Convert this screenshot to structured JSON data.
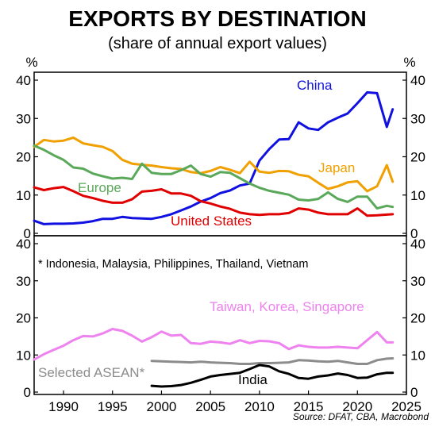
{
  "title": "EXPORTS BY DESTINATION",
  "subtitle": "(share of annual export values)",
  "source": "Source: DFAT, CBA, Macrobond",
  "unit_label": "%",
  "chart_data": [
    {
      "type": "line",
      "ylim": [
        0,
        40
      ],
      "yticks": [
        "0",
        "10",
        "20",
        "30",
        "40"
      ],
      "xlim": [
        1987,
        2025
      ],
      "series": [
        {
          "name": "China",
          "color": "#1010e0",
          "x": [
            1987,
            1988,
            1989,
            1990,
            1991,
            1992,
            1993,
            1994,
            1995,
            1996,
            1997,
            1998,
            1999,
            2000,
            2001,
            2002,
            2003,
            2004,
            2005,
            2006,
            2007,
            2008,
            2009,
            2010,
            2011,
            2012,
            2013,
            2014,
            2015,
            2016,
            2017,
            2018,
            2019,
            2020,
            2021,
            2022,
            2023,
            2023.6
          ],
          "y": [
            3.3,
            2.4,
            2.5,
            2.5,
            2.6,
            2.8,
            3.2,
            3.8,
            3.8,
            4.3,
            4.0,
            3.9,
            3.8,
            4.3,
            5.0,
            6.0,
            7.0,
            8.3,
            9.2,
            10.5,
            11.2,
            12.5,
            13.0,
            19.0,
            22.0,
            24.5,
            24.6,
            29.0,
            27.4,
            27.0,
            29.0,
            30.2,
            31.3,
            34.0,
            36.8,
            36.6,
            27.8,
            32.4
          ]
        },
        {
          "name": "Japan",
          "color": "#f0a000",
          "x": [
            1987,
            1988,
            1989,
            1990,
            1991,
            1992,
            1993,
            1994,
            1995,
            1996,
            1997,
            1998,
            1999,
            2000,
            2001,
            2002,
            2003,
            2004,
            2005,
            2006,
            2007,
            2008,
            2009,
            2010,
            2011,
            2012,
            2013,
            2014,
            2015,
            2016,
            2017,
            2018,
            2019,
            2020,
            2021,
            2022,
            2023,
            2023.6
          ],
          "y": [
            22.6,
            24.4,
            24.0,
            24.2,
            25.0,
            23.5,
            23.0,
            22.6,
            21.5,
            19.2,
            18.2,
            17.9,
            17.7,
            17.3,
            17.0,
            16.8,
            16.0,
            15.7,
            16.3,
            17.3,
            16.6,
            15.7,
            18.7,
            16.1,
            15.8,
            16.3,
            16.2,
            15.3,
            14.9,
            13.2,
            11.6,
            12.3,
            13.3,
            13.6,
            11.0,
            12.3,
            17.8,
            13.5
          ]
        },
        {
          "name": "Europe",
          "color": "#5aa85a",
          "x": [
            1987,
            1988,
            1989,
            1990,
            1991,
            1992,
            1993,
            1994,
            1995,
            1996,
            1997,
            1998,
            1999,
            2000,
            2001,
            2002,
            2003,
            2004,
            2005,
            2006,
            2007,
            2008,
            2009,
            2010,
            2011,
            2012,
            2013,
            2014,
            2015,
            2016,
            2017,
            2018,
            2019,
            2020,
            2021,
            2022,
            2023,
            2023.6
          ],
          "y": [
            22.9,
            21.8,
            20.4,
            19.2,
            17.2,
            16.9,
            15.6,
            14.9,
            14.3,
            14.5,
            14.2,
            18.2,
            15.8,
            15.5,
            15.5,
            16.5,
            17.7,
            15.5,
            14.8,
            16.0,
            15.8,
            14.4,
            13.0,
            11.9,
            11.1,
            10.6,
            10.1,
            8.8,
            8.6,
            9.0,
            10.7,
            9.0,
            8.2,
            9.6,
            9.6,
            6.5,
            7.2,
            6.9
          ]
        },
        {
          "name": "United States",
          "color": "#e00000",
          "x": [
            1987,
            1988,
            1989,
            1990,
            1991,
            1992,
            1993,
            1994,
            1995,
            1996,
            1997,
            1998,
            1999,
            2000,
            2001,
            2002,
            2003,
            2004,
            2005,
            2006,
            2007,
            2008,
            2009,
            2010,
            2011,
            2012,
            2013,
            2014,
            2015,
            2016,
            2017,
            2018,
            2019,
            2020,
            2021,
            2022,
            2023,
            2023.6
          ],
          "y": [
            12.0,
            11.3,
            11.8,
            12.1,
            11.0,
            9.8,
            9.2,
            8.5,
            8.0,
            8.0,
            8.9,
            10.9,
            11.1,
            11.5,
            10.4,
            10.4,
            9.8,
            8.4,
            7.8,
            7.0,
            6.4,
            5.4,
            5.0,
            4.8,
            5.0,
            5.0,
            5.3,
            6.5,
            6.2,
            5.4,
            5.0,
            5.0,
            5.0,
            6.5,
            4.6,
            4.7,
            4.9,
            5.0
          ]
        }
      ],
      "annotations": []
    },
    {
      "type": "line",
      "ylim": [
        0,
        40
      ],
      "yticks": [
        "0",
        "10",
        "20",
        "30",
        "40"
      ],
      "xlim": [
        1987,
        2025
      ],
      "xticks": [
        "1990",
        "1995",
        "2000",
        "2005",
        "2010",
        "2015",
        "2020",
        "2025"
      ],
      "series": [
        {
          "name": "Taiwan, Korea, Singapore",
          "color": "#ee82ee",
          "x": [
            1987,
            1988,
            1989,
            1990,
            1991,
            1992,
            1993,
            1994,
            1995,
            1996,
            1997,
            1998,
            1999,
            2000,
            2001,
            2002,
            2003,
            2004,
            2005,
            2006,
            2007,
            2008,
            2009,
            2010,
            2011,
            2012,
            2013,
            2014,
            2015,
            2016,
            2017,
            2018,
            2019,
            2020,
            2021,
            2022,
            2023,
            2023.6
          ],
          "y": [
            8.8,
            10.2,
            11.4,
            12.5,
            14.0,
            15.1,
            15.0,
            15.8,
            17.0,
            16.5,
            15.2,
            13.6,
            14.8,
            16.3,
            15.2,
            15.4,
            13.2,
            13.0,
            13.6,
            13.4,
            13.0,
            14.0,
            13.2,
            13.8,
            13.7,
            13.2,
            11.6,
            12.6,
            12.2,
            12.0,
            12.0,
            12.2,
            12.0,
            11.8,
            14.0,
            16.2,
            13.4,
            13.4
          ]
        },
        {
          "name": "Selected ASEAN*",
          "color": "#8c8c8c",
          "x": [
            1999,
            2000,
            2001,
            2002,
            2003,
            2004,
            2005,
            2006,
            2007,
            2008,
            2009,
            2010,
            2011,
            2012,
            2013,
            2014,
            2015,
            2016,
            2017,
            2018,
            2019,
            2020,
            2021,
            2022,
            2023,
            2023.6
          ],
          "y": [
            8.4,
            8.3,
            8.2,
            8.1,
            8.0,
            8.2,
            8.0,
            7.9,
            7.8,
            7.6,
            7.6,
            7.8,
            7.8,
            7.9,
            8.0,
            8.6,
            8.5,
            8.3,
            8.2,
            8.4,
            8.0,
            7.6,
            7.6,
            8.6,
            9.0,
            9.1
          ]
        },
        {
          "name": "India",
          "color": "#000000",
          "x": [
            1999,
            2000,
            2001,
            2002,
            2003,
            2004,
            2005,
            2006,
            2007,
            2008,
            2009,
            2010,
            2011,
            2012,
            2013,
            2014,
            2015,
            2016,
            2017,
            2018,
            2019,
            2020,
            2021,
            2022,
            2023,
            2023.6
          ],
          "y": [
            1.7,
            1.5,
            1.6,
            1.9,
            2.5,
            3.3,
            4.2,
            4.6,
            4.9,
            5.2,
            6.2,
            7.3,
            6.9,
            5.6,
            4.9,
            3.8,
            3.6,
            4.2,
            4.5,
            5.0,
            4.6,
            3.8,
            3.9,
            4.8,
            5.2,
            5.2
          ]
        }
      ],
      "annotations": [
        "* Indonesia, Malaysia, Philippines, Thailand, Vietnam"
      ]
    }
  ]
}
